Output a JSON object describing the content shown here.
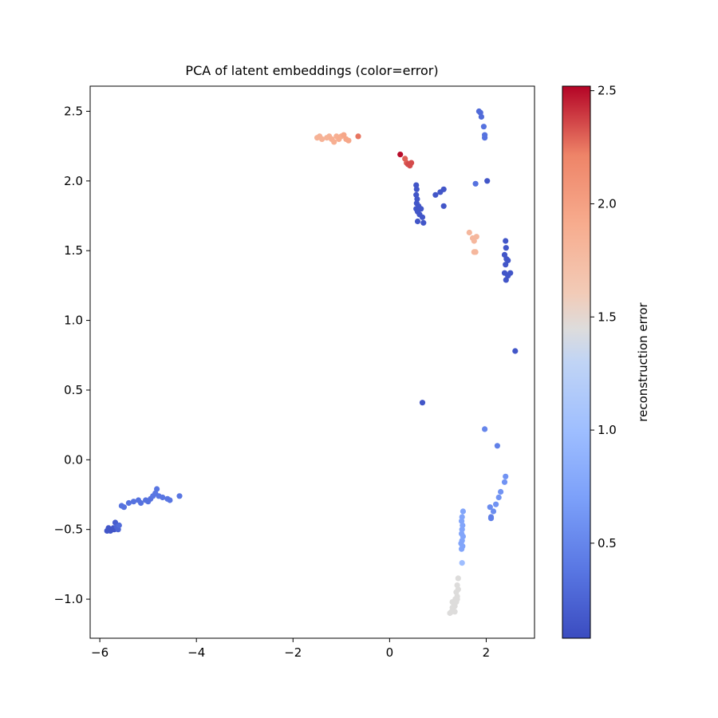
{
  "chart_data": {
    "type": "scatter",
    "title": "PCA of latent embeddings (color=error)",
    "xlabel": "",
    "ylabel": "",
    "xlim": [
      -6.2,
      3.0
    ],
    "ylim": [
      -1.28,
      2.68
    ],
    "xticks": [
      -6,
      -4,
      -2,
      0,
      2
    ],
    "xtick_labels": [
      "−6",
      "−4",
      "−2",
      "0",
      "2"
    ],
    "yticks": [
      -1.0,
      -0.5,
      0.0,
      0.5,
      1.0,
      1.5,
      2.0,
      2.5
    ],
    "ytick_labels": [
      "−1.0",
      "−0.5",
      "0.0",
      "0.5",
      "1.0",
      "1.5",
      "2.0",
      "2.5"
    ],
    "grid": false,
    "colormap": "coolwarm",
    "colorbar": {
      "label": "reconstruction error",
      "range": [
        0.08,
        2.52
      ],
      "ticks": [
        0.5,
        1.0,
        1.5,
        2.0,
        2.5
      ],
      "tick_labels": [
        "0.5",
        "1.0",
        "1.5",
        "2.0",
        "2.5"
      ]
    },
    "points": [
      [
        -5.85,
        -0.51,
        0.15
      ],
      [
        -5.82,
        -0.49,
        0.15
      ],
      [
        -5.8,
        -0.5,
        0.15
      ],
      [
        -5.78,
        -0.51,
        0.15
      ],
      [
        -5.75,
        -0.5,
        0.15
      ],
      [
        -5.72,
        -0.49,
        0.15
      ],
      [
        -5.7,
        -0.5,
        0.15
      ],
      [
        -5.68,
        -0.45,
        0.2
      ],
      [
        -5.65,
        -0.48,
        0.25
      ],
      [
        -5.62,
        -0.5,
        0.25
      ],
      [
        -5.6,
        -0.47,
        0.3
      ],
      [
        -5.55,
        -0.33,
        0.35
      ],
      [
        -5.5,
        -0.34,
        0.35
      ],
      [
        -5.4,
        -0.31,
        0.35
      ],
      [
        -5.3,
        -0.3,
        0.35
      ],
      [
        -5.2,
        -0.29,
        0.35
      ],
      [
        -5.15,
        -0.31,
        0.35
      ],
      [
        -5.05,
        -0.29,
        0.35
      ],
      [
        -5.0,
        -0.3,
        0.35
      ],
      [
        -4.95,
        -0.28,
        0.35
      ],
      [
        -4.9,
        -0.26,
        0.38
      ],
      [
        -4.85,
        -0.24,
        0.38
      ],
      [
        -4.82,
        -0.21,
        0.38
      ],
      [
        -4.78,
        -0.26,
        0.38
      ],
      [
        -4.7,
        -0.27,
        0.38
      ],
      [
        -4.6,
        -0.28,
        0.38
      ],
      [
        -4.55,
        -0.29,
        0.38
      ],
      [
        -4.35,
        -0.26,
        0.38
      ],
      [
        -1.5,
        2.31,
        1.85
      ],
      [
        -1.45,
        2.32,
        1.85
      ],
      [
        -1.4,
        2.3,
        1.85
      ],
      [
        -1.3,
        2.31,
        1.85
      ],
      [
        -1.25,
        2.32,
        1.85
      ],
      [
        -1.2,
        2.3,
        1.88
      ],
      [
        -1.15,
        2.28,
        1.88
      ],
      [
        -1.1,
        2.32,
        1.88
      ],
      [
        -1.05,
        2.3,
        1.9
      ],
      [
        -1.0,
        2.32,
        1.9
      ],
      [
        -0.95,
        2.33,
        1.95
      ],
      [
        -0.9,
        2.3,
        1.95
      ],
      [
        -0.85,
        2.29,
        1.95
      ],
      [
        -0.65,
        2.32,
        2.25
      ],
      [
        0.22,
        2.19,
        2.5
      ],
      [
        0.32,
        2.16,
        2.3
      ],
      [
        0.35,
        2.13,
        2.3
      ],
      [
        0.38,
        2.12,
        2.35
      ],
      [
        0.42,
        2.11,
        2.35
      ],
      [
        0.45,
        2.13,
        2.35
      ],
      [
        0.55,
        1.97,
        0.15
      ],
      [
        0.56,
        1.94,
        0.15
      ],
      [
        0.55,
        1.9,
        0.15
      ],
      [
        0.57,
        1.87,
        0.15
      ],
      [
        0.56,
        1.84,
        0.15
      ],
      [
        0.55,
        1.8,
        0.15
      ],
      [
        0.58,
        1.78,
        0.15
      ],
      [
        0.6,
        1.82,
        0.15
      ],
      [
        0.62,
        1.76,
        0.15
      ],
      [
        0.65,
        1.8,
        0.15
      ],
      [
        0.68,
        1.74,
        0.15
      ],
      [
        0.7,
        1.7,
        0.15
      ],
      [
        0.58,
        1.71,
        0.15
      ],
      [
        0.95,
        1.9,
        0.15
      ],
      [
        1.05,
        1.92,
        0.15
      ],
      [
        1.12,
        1.94,
        0.15
      ],
      [
        1.12,
        1.82,
        0.15
      ],
      [
        1.65,
        1.63,
        1.8
      ],
      [
        1.72,
        1.59,
        1.8
      ],
      [
        1.75,
        1.57,
        1.8
      ],
      [
        1.8,
        1.6,
        1.8
      ],
      [
        1.75,
        1.49,
        1.8
      ],
      [
        1.78,
        1.49,
        1.8
      ],
      [
        2.4,
        1.57,
        0.15
      ],
      [
        2.41,
        1.52,
        0.15
      ],
      [
        2.38,
        1.47,
        0.15
      ],
      [
        2.42,
        1.44,
        0.15
      ],
      [
        2.4,
        1.4,
        0.15
      ],
      [
        2.45,
        1.43,
        0.15
      ],
      [
        2.38,
        1.34,
        0.15
      ],
      [
        2.45,
        1.32,
        0.15
      ],
      [
        2.5,
        1.34,
        0.15
      ],
      [
        2.41,
        1.29,
        0.15
      ],
      [
        1.85,
        2.5,
        0.3
      ],
      [
        1.88,
        2.49,
        0.3
      ],
      [
        1.9,
        2.46,
        0.3
      ],
      [
        1.95,
        2.39,
        0.35
      ],
      [
        1.97,
        2.33,
        0.35
      ],
      [
        1.97,
        2.31,
        0.35
      ],
      [
        1.78,
        1.98,
        0.35
      ],
      [
        2.02,
        2.0,
        0.15
      ],
      [
        2.6,
        0.78,
        0.15
      ],
      [
        0.68,
        0.41,
        0.15
      ],
      [
        1.97,
        0.22,
        0.5
      ],
      [
        2.23,
        0.1,
        0.45
      ],
      [
        2.4,
        -0.12,
        0.6
      ],
      [
        2.38,
        -0.16,
        0.6
      ],
      [
        2.3,
        -0.23,
        0.6
      ],
      [
        2.26,
        -0.27,
        0.6
      ],
      [
        2.2,
        -0.32,
        0.6
      ],
      [
        2.15,
        -0.37,
        0.55
      ],
      [
        2.08,
        -0.34,
        0.55
      ],
      [
        2.1,
        -0.41,
        0.45
      ],
      [
        2.1,
        -0.42,
        0.45
      ],
      [
        1.52,
        -0.37,
        0.75
      ],
      [
        1.5,
        -0.41,
        0.75
      ],
      [
        1.49,
        -0.44,
        0.75
      ],
      [
        1.51,
        -0.47,
        0.75
      ],
      [
        1.5,
        -0.5,
        0.75
      ],
      [
        1.49,
        -0.53,
        0.75
      ],
      [
        1.52,
        -0.55,
        0.75
      ],
      [
        1.5,
        -0.58,
        0.75
      ],
      [
        1.48,
        -0.6,
        0.75
      ],
      [
        1.51,
        -0.62,
        0.75
      ],
      [
        1.49,
        -0.64,
        0.75
      ],
      [
        1.5,
        -0.74,
        1.0
      ],
      [
        1.42,
        -0.85,
        1.45
      ],
      [
        1.4,
        -0.9,
        1.45
      ],
      [
        1.42,
        -0.93,
        1.45
      ],
      [
        1.38,
        -0.95,
        1.45
      ],
      [
        1.4,
        -0.98,
        1.45
      ],
      [
        1.36,
        -1.0,
        1.45
      ],
      [
        1.38,
        -1.02,
        1.45
      ],
      [
        1.33,
        -1.03,
        1.45
      ],
      [
        1.35,
        -1.05,
        1.45
      ],
      [
        1.3,
        -1.06,
        1.45
      ],
      [
        1.32,
        -1.08,
        1.45
      ],
      [
        1.28,
        -1.09,
        1.45
      ],
      [
        1.25,
        -1.1,
        1.45
      ],
      [
        1.35,
        -1.09,
        1.45
      ],
      [
        1.4,
        -1.0,
        1.45
      ],
      [
        1.3,
        -1.02,
        1.45
      ]
    ]
  }
}
